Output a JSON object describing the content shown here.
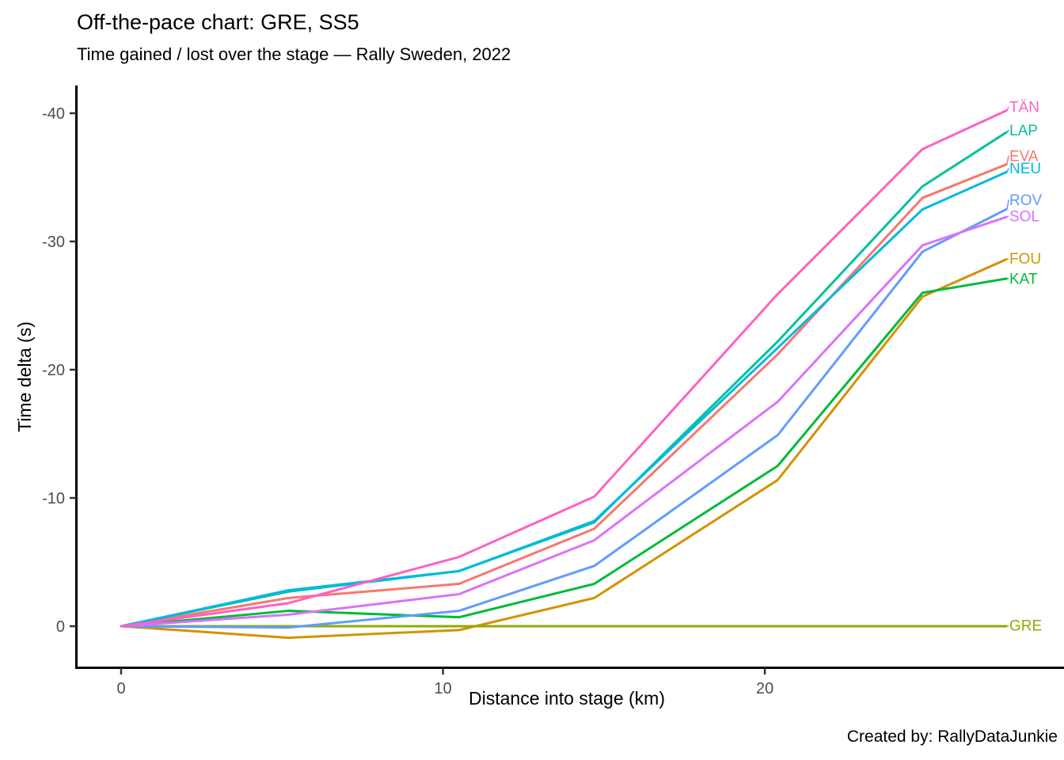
{
  "chart_data": {
    "type": "line",
    "title": "Off-the-pace chart: GRE, SS5",
    "subtitle": "Time gained / lost over the stage — Rally Sweden, 2022",
    "xlabel": "Distance into stage (km)",
    "ylabel": "Time delta (s)",
    "xlim": [
      0,
      27.5
    ],
    "ylim": [
      0,
      -40
    ],
    "y_reversed": true,
    "grid": false,
    "legend": "right-of-line direct labels",
    "x_ticks": [
      {
        "value": 0,
        "label": "0"
      },
      {
        "value": 10,
        "label": "10"
      },
      {
        "value": 20,
        "label": "20"
      }
    ],
    "y_ticks": [
      {
        "value": 0,
        "label": "0"
      },
      {
        "value": -10,
        "label": "-10"
      },
      {
        "value": -20,
        "label": "-20"
      },
      {
        "value": -30,
        "label": "-30"
      },
      {
        "value": -40,
        "label": "-40"
      }
    ],
    "series": [
      {
        "name": "EVA",
        "color": "#F8766D",
        "label_dy": -11,
        "points": [
          [
            0,
            0
          ],
          [
            5.2,
            -2.2
          ],
          [
            10.5,
            -3.3
          ],
          [
            14.7,
            -7.6
          ],
          [
            20.4,
            -21.2
          ],
          [
            24.9,
            -33.4
          ],
          [
            27.5,
            -36.0
          ]
        ]
      },
      {
        "name": "FOU",
        "color": "#D39200",
        "label_dy": -1,
        "points": [
          [
            0,
            0
          ],
          [
            5.2,
            0.9
          ],
          [
            10.5,
            0.3
          ],
          [
            14.7,
            -2.2
          ],
          [
            20.4,
            -11.4
          ],
          [
            24.9,
            -25.7
          ],
          [
            27.5,
            -28.6
          ]
        ]
      },
      {
        "name": "GRE",
        "color": "#93AA00",
        "label_dy": -1,
        "points": [
          [
            0,
            0
          ],
          [
            5.2,
            0
          ],
          [
            10.5,
            0
          ],
          [
            14.7,
            0
          ],
          [
            20.4,
            0
          ],
          [
            24.9,
            0
          ],
          [
            27.5,
            0
          ]
        ]
      },
      {
        "name": "KAT",
        "color": "#00BA38",
        "label_dy": 0,
        "points": [
          [
            0,
            0
          ],
          [
            5.2,
            -1.2
          ],
          [
            10.5,
            -0.7
          ],
          [
            14.7,
            -3.3
          ],
          [
            20.4,
            -12.5
          ],
          [
            24.9,
            -26.0
          ],
          [
            27.5,
            -27.1
          ]
        ]
      },
      {
        "name": "LAP",
        "color": "#00C19F",
        "label_dy": -3,
        "points": [
          [
            0,
            0
          ],
          [
            5.2,
            -2.7
          ],
          [
            10.5,
            -4.3
          ],
          [
            14.7,
            -8.1
          ],
          [
            20.4,
            -22.2
          ],
          [
            24.9,
            -34.3
          ],
          [
            27.5,
            -38.5
          ]
        ]
      },
      {
        "name": "NEU",
        "color": "#00B9E3",
        "label_dy": -5,
        "points": [
          [
            0,
            0
          ],
          [
            5.2,
            -2.8
          ],
          [
            10.5,
            -4.3
          ],
          [
            14.7,
            -8.2
          ],
          [
            20.4,
            -21.7
          ],
          [
            24.9,
            -32.5
          ],
          [
            27.5,
            -35.4
          ]
        ]
      },
      {
        "name": "ROV",
        "color": "#619CFF",
        "label_dy": -12,
        "points": [
          [
            0,
            0
          ],
          [
            5.2,
            0.1
          ],
          [
            10.5,
            -1.2
          ],
          [
            14.7,
            -4.7
          ],
          [
            20.4,
            -14.9
          ],
          [
            24.9,
            -29.2
          ],
          [
            27.5,
            -32.5
          ]
        ]
      },
      {
        "name": "SOL",
        "color": "#DB72FB",
        "label_dy": -1,
        "points": [
          [
            0,
            0
          ],
          [
            5.2,
            -0.9
          ],
          [
            10.5,
            -2.5
          ],
          [
            14.7,
            -6.7
          ],
          [
            20.4,
            -17.5
          ],
          [
            24.9,
            -29.7
          ],
          [
            27.5,
            -31.9
          ]
        ]
      },
      {
        "name": "TÄN",
        "color": "#FF61C3",
        "label_dy": -5,
        "points": [
          [
            0,
            0
          ],
          [
            5.2,
            -1.8
          ],
          [
            10.5,
            -5.4
          ],
          [
            14.7,
            -10.1
          ],
          [
            20.4,
            -25.9
          ],
          [
            24.9,
            -37.2
          ],
          [
            27.5,
            -40.2
          ]
        ]
      }
    ]
  },
  "footer": {
    "credit": "Created by: RallyDataJunkie"
  }
}
